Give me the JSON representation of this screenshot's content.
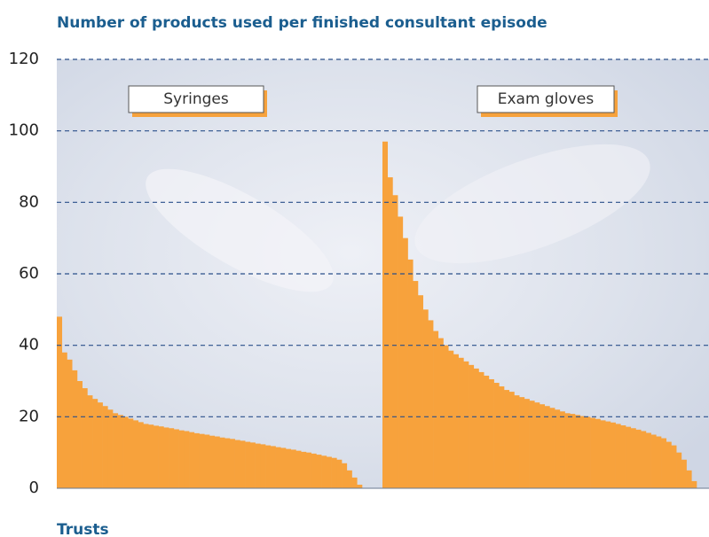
{
  "chart_data": {
    "type": "bar",
    "title": "Number of products used per finished consultant episode",
    "x_label": "Trusts",
    "ylim": [
      0,
      120
    ],
    "yticks": [
      0,
      20,
      40,
      60,
      80,
      100,
      120
    ],
    "grid": true,
    "series": [
      {
        "name": "Syringes",
        "color": "#f7a23c",
        "values": [
          48,
          38,
          36,
          33,
          30,
          28,
          26,
          25,
          24,
          23,
          22,
          21,
          20.5,
          20,
          19.5,
          19,
          18.5,
          18,
          17.8,
          17.5,
          17.3,
          17,
          16.8,
          16.5,
          16.2,
          16,
          15.7,
          15.4,
          15.2,
          15,
          14.7,
          14.5,
          14.2,
          14,
          13.8,
          13.5,
          13.3,
          13,
          12.8,
          12.5,
          12.3,
          12,
          11.8,
          11.5,
          11.3,
          11,
          10.8,
          10.5,
          10.2,
          10,
          9.7,
          9.4,
          9.1,
          8.8,
          8.5,
          8,
          7,
          5,
          3,
          1
        ]
      },
      {
        "name": "Exam gloves",
        "color": "#f7a23c",
        "values": [
          97,
          87,
          82,
          76,
          70,
          64,
          58,
          54,
          50,
          47,
          44,
          42,
          40,
          38.5,
          37.5,
          36.5,
          35.5,
          34.5,
          33.5,
          32.5,
          31.5,
          30.5,
          29.5,
          28.5,
          27.5,
          27,
          26,
          25.5,
          25,
          24.5,
          24,
          23.5,
          23,
          22.5,
          22,
          21.5,
          21,
          20.8,
          20.5,
          20.2,
          20,
          19.7,
          19.4,
          19,
          18.7,
          18.4,
          18,
          17.6,
          17.2,
          16.8,
          16.4,
          16,
          15.5,
          15,
          14.5,
          14,
          13,
          12,
          10,
          8,
          5,
          2
        ]
      }
    ]
  }
}
